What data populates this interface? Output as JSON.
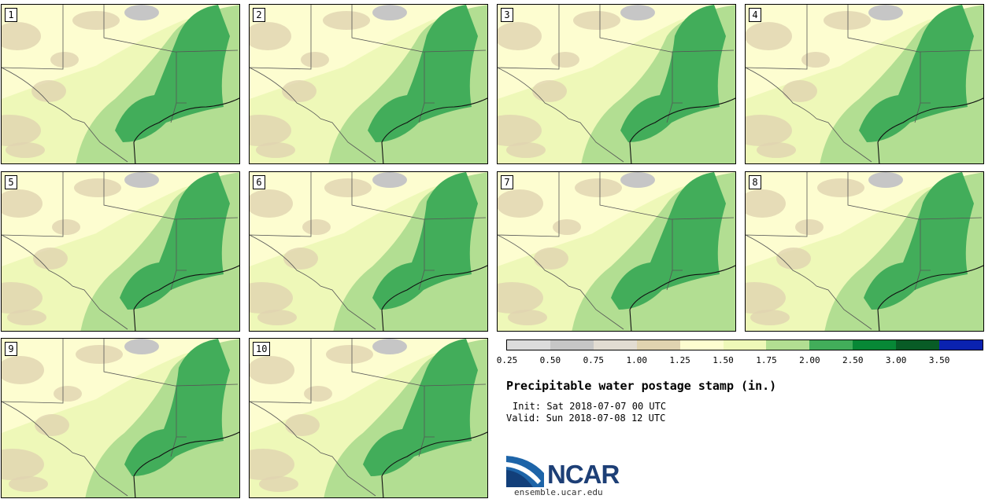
{
  "panels": [
    {
      "label": "1",
      "wet_extent": 0.62
    },
    {
      "label": "2",
      "wet_extent": 0.55
    },
    {
      "label": "3",
      "wet_extent": 0.52
    },
    {
      "label": "4",
      "wet_extent": 0.6
    },
    {
      "label": "5",
      "wet_extent": 0.6
    },
    {
      "label": "6",
      "wet_extent": 0.62
    },
    {
      "label": "7",
      "wet_extent": 0.58
    },
    {
      "label": "8",
      "wet_extent": 0.56
    },
    {
      "label": "9",
      "wet_extent": 0.65
    },
    {
      "label": "10",
      "wet_extent": 0.62
    }
  ],
  "legend": {
    "bins": [
      "#dcdcdc",
      "#c6c6c6",
      "#e2dcd2",
      "#e0d3b0",
      "#fdfdd0",
      "#eef8b8",
      "#b2de92",
      "#42ad5a",
      "#078836",
      "#085c26",
      "#0a22b0"
    ],
    "tick_labels": [
      "0.25",
      "0.50",
      "0.75",
      "1.00",
      "1.25",
      "1.50",
      "1.75",
      "2.00",
      "2.50",
      "3.00",
      "3.50"
    ]
  },
  "title": "Precipitable water postage stamp (in.)",
  "init_line": "Init: Sat 2018-07-07 00 UTC",
  "valid_line": "Valid: Sun 2018-07-08 12 UTC",
  "logo_text": "NCAR",
  "url": "ensemble.ucar.edu"
}
